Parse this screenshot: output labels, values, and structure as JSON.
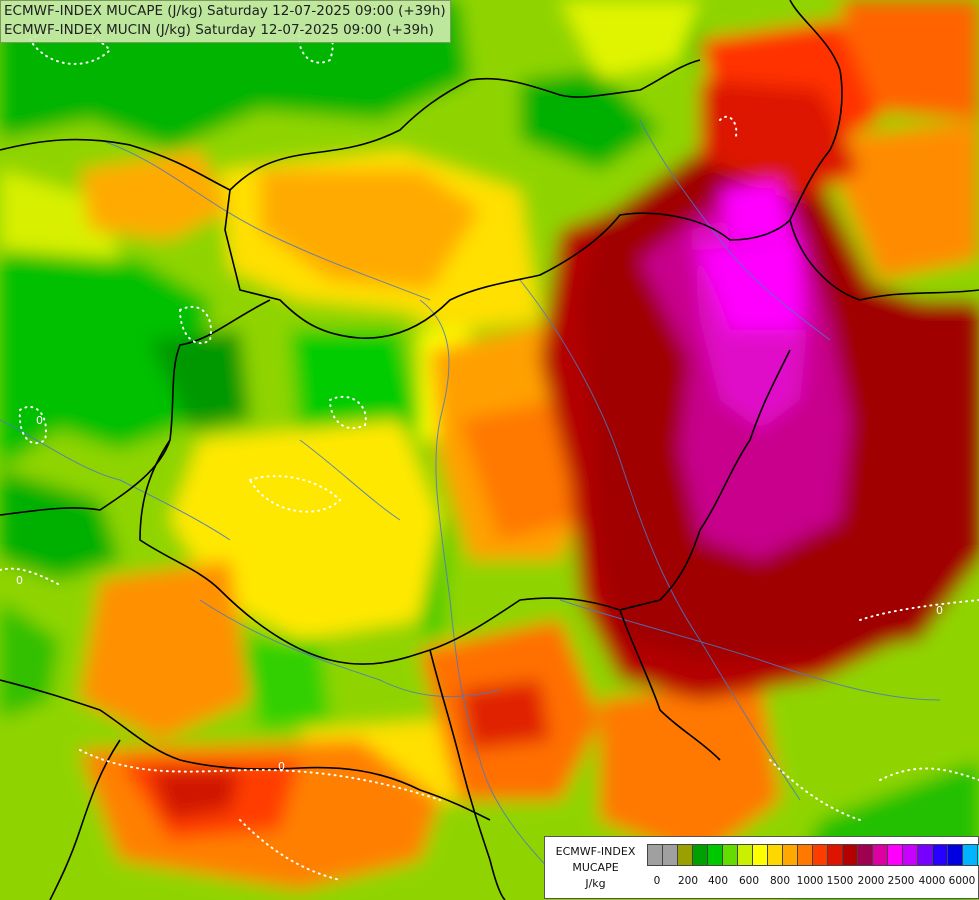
{
  "header": {
    "line1": "ECMWF-INDEX MUCAPE (J/kg) Saturday 12-07-2025 09:00 (+39h)",
    "line2": "ECMWF-INDEX MUCIN (J/kg) Saturday 12-07-2025 09:00 (+39h)"
  },
  "legend": {
    "title1": "ECMWF-INDEX",
    "title2": "MUCAPE",
    "unit": "J/kg",
    "colors": [
      "#a0a0a0",
      "#a0a0a0",
      "#9aa000",
      "#00a000",
      "#00c800",
      "#64dc00",
      "#c8f000",
      "#ffff00",
      "#ffd700",
      "#ffa800",
      "#ff7800",
      "#ff3c00",
      "#dc1400",
      "#b40000",
      "#a00050",
      "#dc00a0",
      "#ff00ff",
      "#c800ff",
      "#7800ff",
      "#2800ff",
      "#0000e0",
      "#00b4ff",
      "#00ffff",
      "#c8ffff",
      "#ffffff"
    ],
    "ticks": [
      "0",
      "200",
      "400",
      "600",
      "800",
      "1000",
      "1500",
      "2000",
      "2500",
      "4000",
      "6000"
    ]
  },
  "map": {
    "mucin_contour_label": "0"
  }
}
